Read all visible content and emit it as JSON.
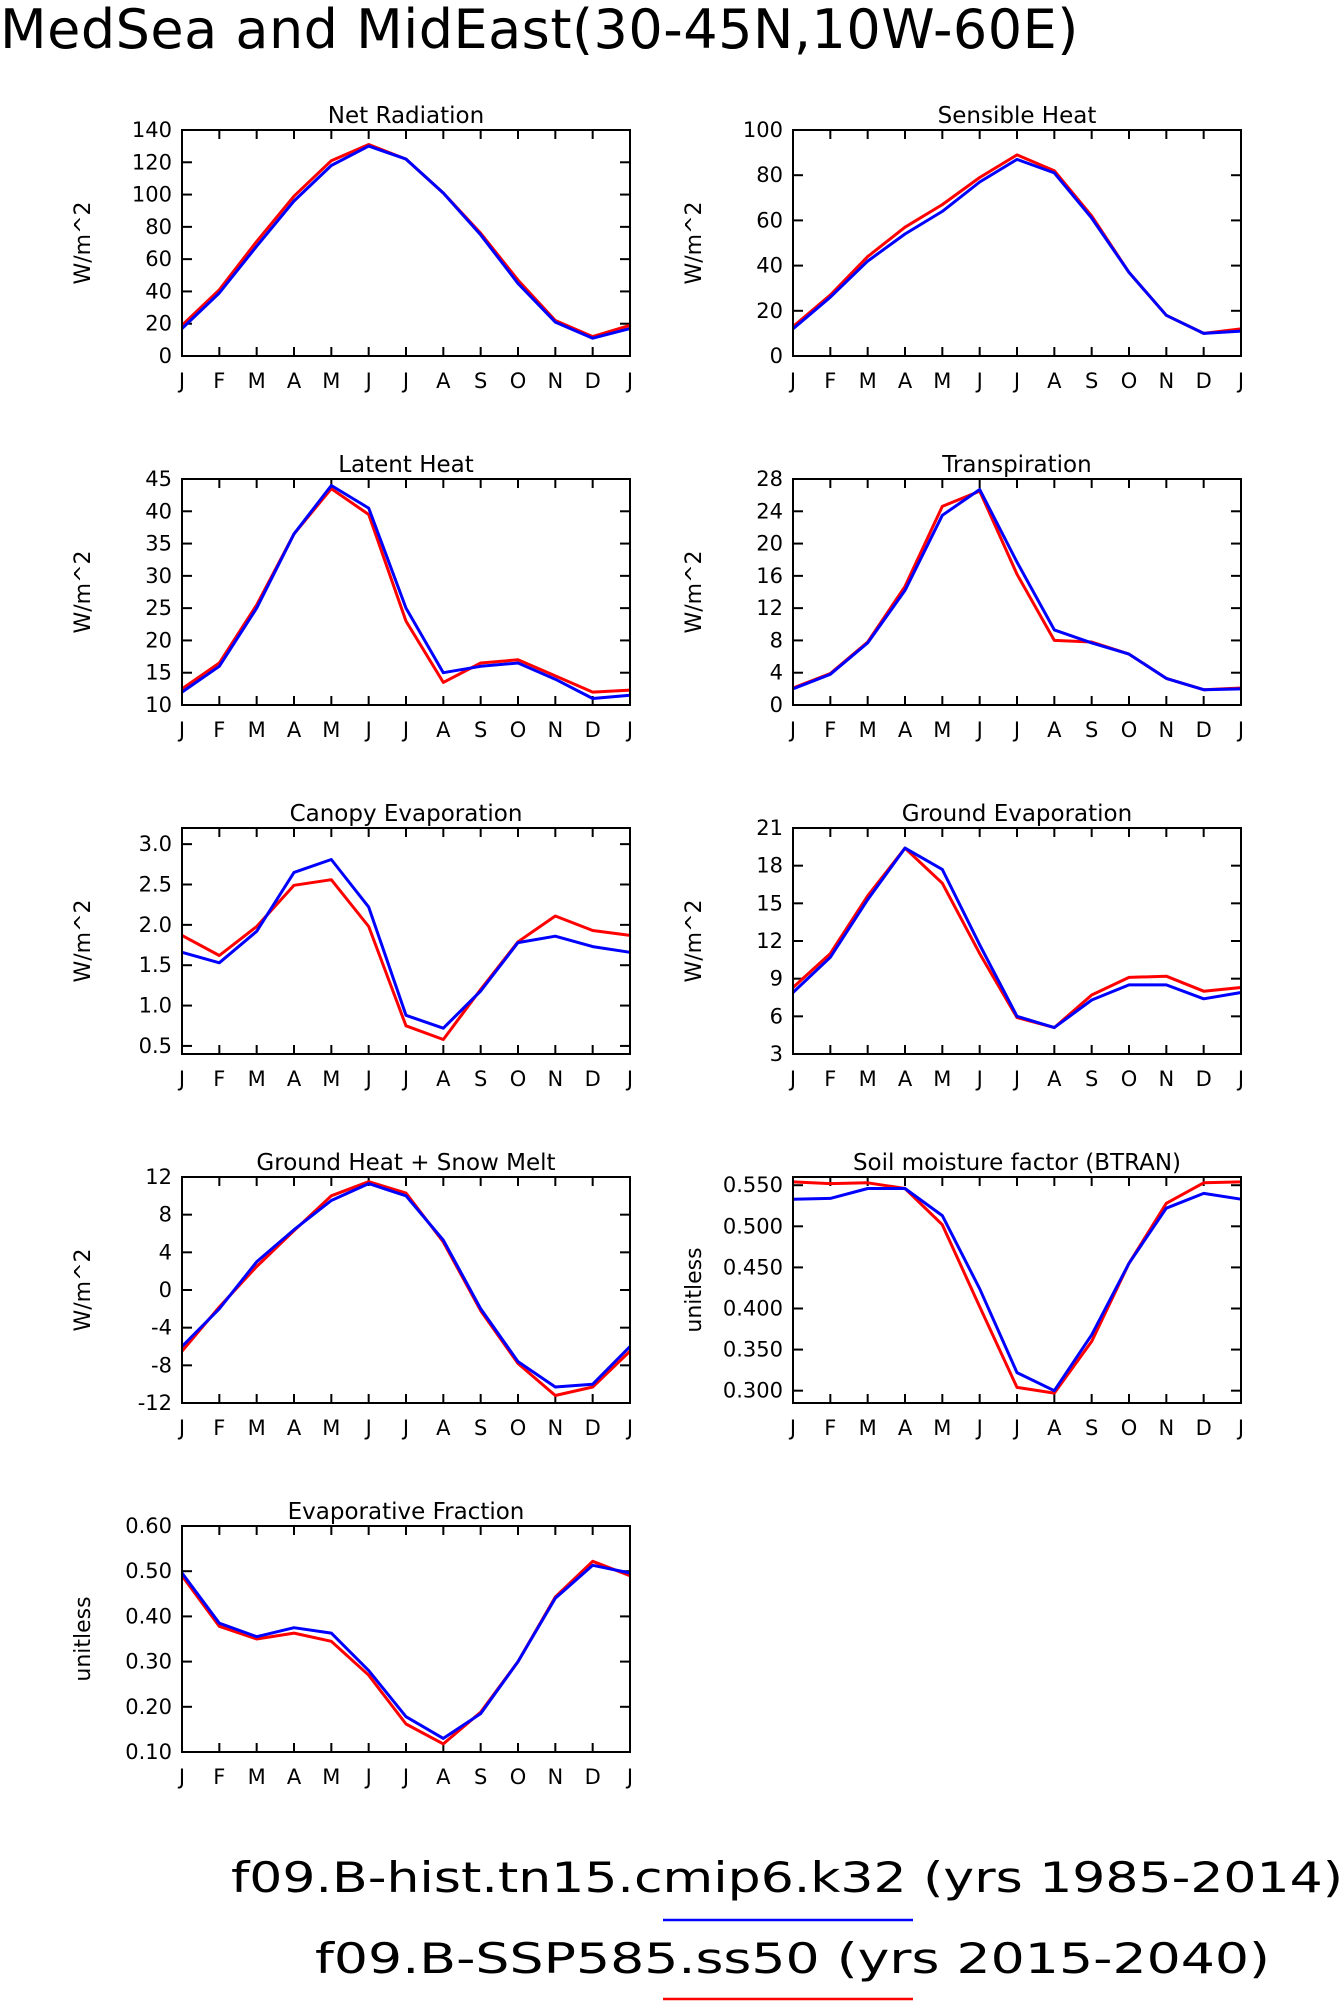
{
  "page": {
    "title": "MedSea and MidEast(30-45N,10W-60E)"
  },
  "legend": [
    {
      "label": "f09.B-hist.tn15.cmip6.k32 (yrs 1985-2014)",
      "color": "#0000ff"
    },
    {
      "label": "f09.B-SSP585.ss50 (yrs 2015-2040)",
      "color": "#ff0000"
    }
  ],
  "chart_data": [
    {
      "type": "line",
      "title": "Net Radiation",
      "ylabel": "W/m^2",
      "categories": [
        "J",
        "F",
        "M",
        "A",
        "M",
        "J",
        "J",
        "A",
        "S",
        "O",
        "N",
        "D",
        "J"
      ],
      "ylim": [
        0,
        140
      ],
      "yticks": [
        0,
        20,
        40,
        60,
        80,
        100,
        120,
        140
      ],
      "ytick_labels": [
        "0",
        "20",
        "40",
        "60",
        "80",
        "100",
        "120",
        "140"
      ],
      "series": [
        {
          "name": "f09.B-hist.tn15.cmip6.k32",
          "color": "#0000ff",
          "values": [
            17,
            39,
            68,
            96,
            118,
            130,
            122,
            101,
            75,
            45,
            21,
            11,
            17
          ]
        },
        {
          "name": "f09.B-SSP585.ss50",
          "color": "#ff0000",
          "values": [
            19,
            41,
            71,
            99,
            121,
            131,
            122,
            101,
            76,
            47,
            22,
            12,
            19
          ]
        }
      ]
    },
    {
      "type": "line",
      "title": "Sensible Heat",
      "ylabel": "W/m^2",
      "categories": [
        "J",
        "F",
        "M",
        "A",
        "M",
        "J",
        "J",
        "A",
        "S",
        "O",
        "N",
        "D",
        "J"
      ],
      "ylim": [
        0,
        100
      ],
      "yticks": [
        0,
        20,
        40,
        60,
        80,
        100
      ],
      "ytick_labels": [
        "0",
        "20",
        "40",
        "60",
        "80",
        "100"
      ],
      "series": [
        {
          "name": "f09.B-hist.tn15.cmip6.k32",
          "color": "#0000ff",
          "values": [
            12,
            26,
            42,
            54,
            64,
            77,
            87,
            81,
            61,
            37,
            18,
            10,
            11
          ]
        },
        {
          "name": "f09.B-SSP585.ss50",
          "color": "#ff0000",
          "values": [
            13,
            27,
            44,
            57,
            67,
            79,
            89,
            82,
            62,
            37,
            18,
            10,
            12
          ]
        }
      ]
    },
    {
      "type": "line",
      "title": "Latent Heat",
      "ylabel": "W/m^2",
      "categories": [
        "J",
        "F",
        "M",
        "A",
        "M",
        "J",
        "J",
        "A",
        "S",
        "O",
        "N",
        "D",
        "J"
      ],
      "ylim": [
        10,
        45
      ],
      "yticks": [
        10,
        15,
        20,
        25,
        30,
        35,
        40,
        45
      ],
      "ytick_labels": [
        "10",
        "15",
        "20",
        "25",
        "30",
        "35",
        "40",
        "45"
      ],
      "series": [
        {
          "name": "f09.B-hist.tn15.cmip6.k32",
          "color": "#0000ff",
          "values": [
            12,
            16,
            25,
            36.5,
            44,
            40.5,
            25,
            15,
            16,
            16.5,
            14,
            11,
            11.5
          ]
        },
        {
          "name": "f09.B-SSP585.ss50",
          "color": "#ff0000",
          "values": [
            12.5,
            16.5,
            25.5,
            36.5,
            43.5,
            39.5,
            23,
            13.5,
            16.5,
            17,
            14.5,
            12,
            12.3
          ]
        }
      ]
    },
    {
      "type": "line",
      "title": "Transpiration",
      "ylabel": "W/m^2",
      "categories": [
        "J",
        "F",
        "M",
        "A",
        "M",
        "J",
        "J",
        "A",
        "S",
        "O",
        "N",
        "D",
        "J"
      ],
      "ylim": [
        0,
        28
      ],
      "yticks": [
        0,
        4,
        8,
        12,
        16,
        20,
        24,
        28
      ],
      "ytick_labels": [
        "0",
        "4",
        "8",
        "12",
        "16",
        "20",
        "24",
        "28"
      ],
      "series": [
        {
          "name": "f09.B-hist.tn15.cmip6.k32",
          "color": "#0000ff",
          "values": [
            2,
            3.8,
            7.7,
            14.2,
            23.5,
            26.7,
            17.7,
            9.3,
            7.7,
            6.3,
            3.3,
            1.9,
            2
          ]
        },
        {
          "name": "f09.B-SSP585.ss50",
          "color": "#ff0000",
          "values": [
            2.1,
            3.9,
            7.8,
            14.7,
            24.6,
            26.5,
            16.2,
            8,
            7.8,
            6.3,
            3.3,
            1.9,
            2.1
          ]
        }
      ]
    },
    {
      "type": "line",
      "title": "Canopy Evaporation",
      "ylabel": "W/m^2",
      "categories": [
        "J",
        "F",
        "M",
        "A",
        "M",
        "J",
        "J",
        "A",
        "S",
        "O",
        "N",
        "D",
        "J"
      ],
      "ylim": [
        0.4,
        3.2
      ],
      "yticks": [
        0.5,
        1.0,
        1.5,
        2.0,
        2.5,
        3.0
      ],
      "ytick_labels": [
        "0.5",
        "1.0",
        "1.5",
        "2.0",
        "2.5",
        "3.0"
      ],
      "series": [
        {
          "name": "f09.B-hist.tn15.cmip6.k32",
          "color": "#0000ff",
          "values": [
            1.66,
            1.53,
            1.92,
            2.65,
            2.81,
            2.22,
            0.88,
            0.72,
            1.18,
            1.78,
            1.86,
            1.73,
            1.66
          ]
        },
        {
          "name": "f09.B-SSP585.ss50",
          "color": "#ff0000",
          "values": [
            1.87,
            1.62,
            1.98,
            2.49,
            2.56,
            1.98,
            0.75,
            0.58,
            1.2,
            1.79,
            2.11,
            1.93,
            1.87
          ]
        }
      ]
    },
    {
      "type": "line",
      "title": "Ground Evaporation",
      "ylabel": "W/m^2",
      "categories": [
        "J",
        "F",
        "M",
        "A",
        "M",
        "J",
        "J",
        "A",
        "S",
        "O",
        "N",
        "D",
        "J"
      ],
      "ylim": [
        3,
        21
      ],
      "yticks": [
        3,
        6,
        9,
        12,
        15,
        18,
        21
      ],
      "ytick_labels": [
        "3",
        "6",
        "9",
        "12",
        "15",
        "18",
        "21"
      ],
      "series": [
        {
          "name": "f09.B-hist.tn15.cmip6.k32",
          "color": "#0000ff",
          "values": [
            7.9,
            10.7,
            15.3,
            19.4,
            17.7,
            11.7,
            6,
            5.1,
            7.3,
            8.5,
            8.5,
            7.4,
            7.9
          ]
        },
        {
          "name": "f09.B-SSP585.ss50",
          "color": "#ff0000",
          "values": [
            8.3,
            11,
            15.6,
            19.4,
            16.6,
            11,
            5.9,
            5.1,
            7.7,
            9.1,
            9.2,
            8,
            8.3
          ]
        }
      ]
    },
    {
      "type": "line",
      "title": "Ground Heat + Snow Melt",
      "ylabel": "W/m^2",
      "categories": [
        "J",
        "F",
        "M",
        "A",
        "M",
        "J",
        "J",
        "A",
        "S",
        "O",
        "N",
        "D",
        "J"
      ],
      "ylim": [
        -12,
        12
      ],
      "yticks": [
        -12,
        -8,
        -4,
        0,
        4,
        8,
        12
      ],
      "ytick_labels": [
        "-12",
        "-8",
        "-4",
        "0",
        "4",
        "8",
        "12"
      ],
      "series": [
        {
          "name": "f09.B-hist.tn15.cmip6.k32",
          "color": "#0000ff",
          "values": [
            -6,
            -2,
            3,
            6.4,
            9.5,
            11.3,
            10,
            5.3,
            -2,
            -7.6,
            -10.3,
            -10,
            -6
          ]
        },
        {
          "name": "f09.B-SSP585.ss50",
          "color": "#ff0000",
          "values": [
            -6.5,
            -1.8,
            2.5,
            6.3,
            10,
            11.5,
            10.3,
            5.1,
            -2.2,
            -7.8,
            -11.2,
            -10.3,
            -6.5
          ]
        }
      ]
    },
    {
      "type": "line",
      "title": "Soil moisture factor (BTRAN)",
      "ylabel": "unitless",
      "categories": [
        "J",
        "F",
        "M",
        "A",
        "M",
        "J",
        "J",
        "A",
        "S",
        "O",
        "N",
        "D",
        "J"
      ],
      "ylim": [
        0.285,
        0.56
      ],
      "yticks": [
        0.3,
        0.35,
        0.4,
        0.45,
        0.5,
        0.55
      ],
      "ytick_labels": [
        "0.300",
        "0.350",
        "0.400",
        "0.450",
        "0.500",
        "0.550"
      ],
      "series": [
        {
          "name": "f09.B-hist.tn15.cmip6.k32",
          "color": "#0000ff",
          "values": [
            0.533,
            0.534,
            0.546,
            0.546,
            0.513,
            0.424,
            0.322,
            0.3,
            0.368,
            0.455,
            0.522,
            0.54,
            0.533
          ]
        },
        {
          "name": "f09.B-SSP585.ss50",
          "color": "#ff0000",
          "values": [
            0.554,
            0.552,
            0.553,
            0.546,
            0.502,
            0.402,
            0.304,
            0.297,
            0.36,
            0.455,
            0.528,
            0.553,
            0.554
          ]
        }
      ]
    },
    {
      "type": "line",
      "title": "Evaporative Fraction",
      "ylabel": "unitless",
      "categories": [
        "J",
        "F",
        "M",
        "A",
        "M",
        "J",
        "J",
        "A",
        "S",
        "O",
        "N",
        "D",
        "J"
      ],
      "ylim": [
        0.1,
        0.6
      ],
      "yticks": [
        0.1,
        0.2,
        0.3,
        0.4,
        0.5,
        0.6
      ],
      "ytick_labels": [
        "0.10",
        "0.20",
        "0.30",
        "0.40",
        "0.50",
        "0.60"
      ],
      "series": [
        {
          "name": "f09.B-hist.tn15.cmip6.k32",
          "color": "#0000ff",
          "values": [
            0.496,
            0.385,
            0.355,
            0.375,
            0.363,
            0.28,
            0.178,
            0.13,
            0.185,
            0.3,
            0.44,
            0.513,
            0.496
          ]
        },
        {
          "name": "f09.B-SSP585.ss50",
          "color": "#ff0000",
          "values": [
            0.49,
            0.378,
            0.35,
            0.363,
            0.345,
            0.27,
            0.162,
            0.118,
            0.188,
            0.3,
            0.443,
            0.522,
            0.49
          ]
        }
      ]
    }
  ]
}
